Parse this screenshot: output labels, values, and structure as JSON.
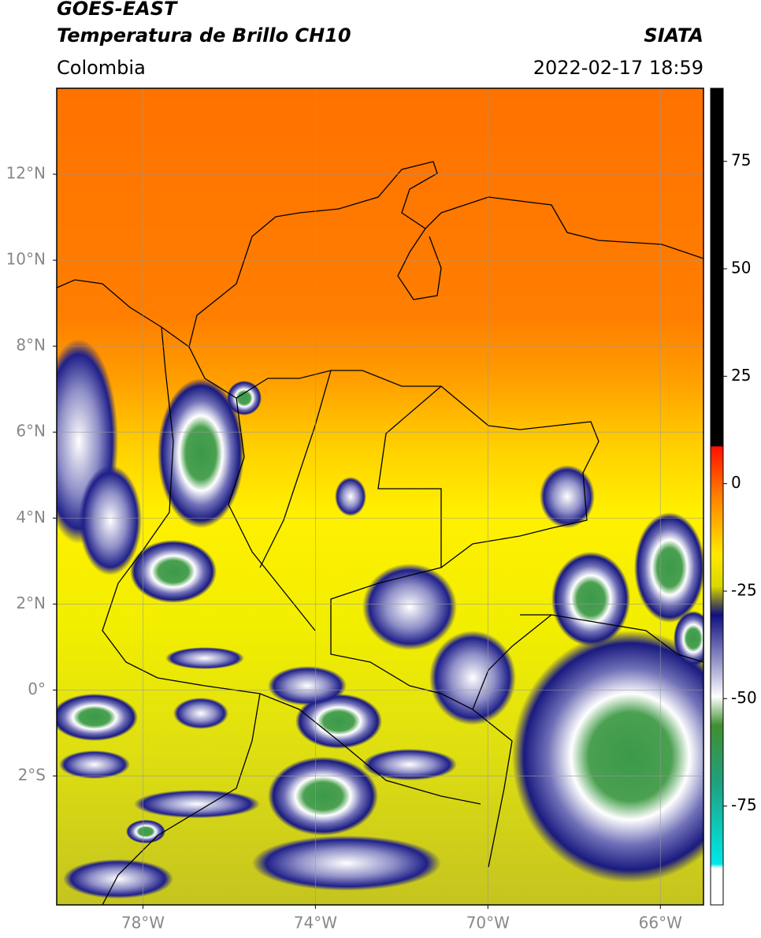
{
  "header": {
    "satellite": "GOES-EAST",
    "product": "Temperatura de Brillo CH10",
    "region": "Colombia",
    "source": "SIATA",
    "datetime": "2022-02-17 18:59"
  },
  "map": {
    "xlim": [
      -80,
      -65
    ],
    "ylim": [
      -5,
      14
    ],
    "xticks": [
      {
        "value": -78,
        "label": "78°W"
      },
      {
        "value": -74,
        "label": "74°W"
      },
      {
        "value": -70,
        "label": "70°W"
      },
      {
        "value": -66,
        "label": "66°W"
      }
    ],
    "yticks": [
      {
        "value": 12,
        "label": "12°N"
      },
      {
        "value": 10,
        "label": "10°N"
      },
      {
        "value": 8,
        "label": "8°N"
      },
      {
        "value": 6,
        "label": "6°N"
      },
      {
        "value": 4,
        "label": "4°N"
      },
      {
        "value": 2,
        "label": "2°N"
      },
      {
        "value": 0,
        "label": "0°"
      },
      {
        "value": -2,
        "label": "2°S"
      }
    ],
    "grid": true
  },
  "colorbar": {
    "lim": [
      -98,
      92
    ],
    "ticks": [
      75,
      50,
      25,
      0,
      -25,
      -50,
      -75
    ]
  }
}
